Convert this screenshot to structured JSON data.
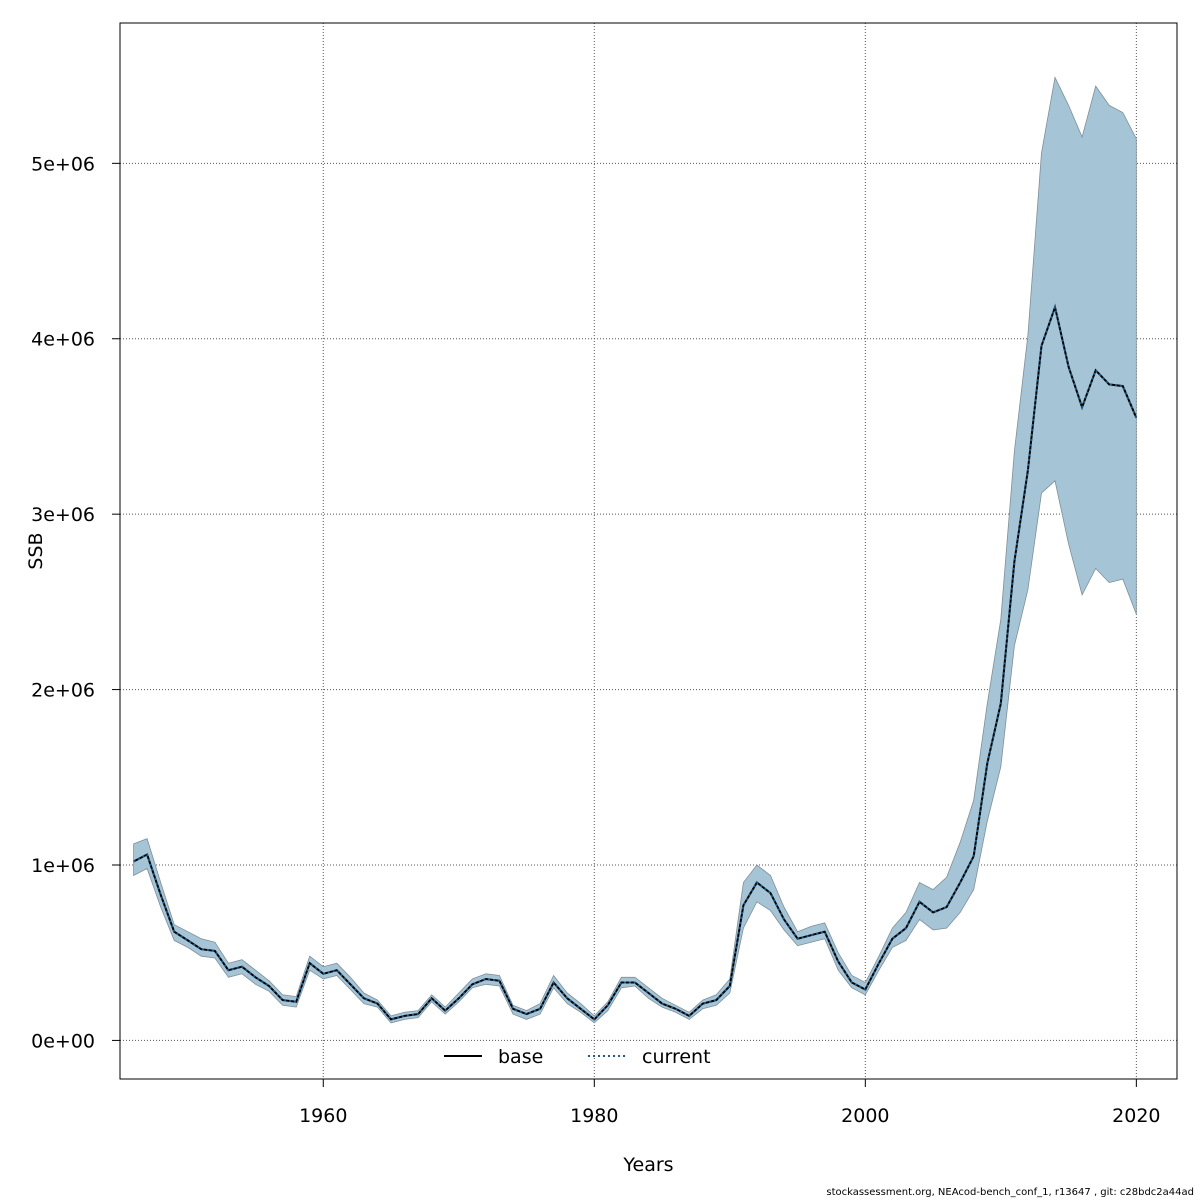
{
  "chart_data": {
    "type": "line",
    "xlabel": "Years",
    "ylabel": "SSB",
    "xlim": [
      1945,
      2023
    ],
    "ylim": [
      -220000,
      5800000
    ],
    "x_ticks": [
      1960,
      1980,
      2000,
      2020
    ],
    "x_tick_labels": [
      "1960",
      "1980",
      "2000",
      "2020"
    ],
    "y_ticks": [
      0,
      1000000,
      2000000,
      3000000,
      4000000,
      5000000
    ],
    "y_tick_labels": [
      "0e+00",
      "1e+06",
      "2e+06",
      "3e+06",
      "4e+06",
      "5e+06"
    ],
    "grid": true,
    "legend_position": "bottom-center",
    "colors": {
      "band": "#a5c5d6",
      "band_edge": "#7f8f99",
      "base": "#000000",
      "current": "#1f5a8a",
      "grid": "#555555"
    },
    "x": [
      1946,
      1947,
      1948,
      1949,
      1950,
      1951,
      1952,
      1953,
      1954,
      1955,
      1956,
      1957,
      1958,
      1959,
      1960,
      1961,
      1962,
      1963,
      1964,
      1965,
      1966,
      1967,
      1968,
      1969,
      1970,
      1971,
      1972,
      1973,
      1974,
      1975,
      1976,
      1977,
      1978,
      1979,
      1980,
      1981,
      1982,
      1983,
      1984,
      1985,
      1986,
      1987,
      1988,
      1989,
      1990,
      1991,
      1992,
      1993,
      1994,
      1995,
      1996,
      1997,
      1998,
      1999,
      2000,
      2001,
      2002,
      2003,
      2004,
      2005,
      2006,
      2007,
      2008,
      2009,
      2010,
      2011,
      2012,
      2013,
      2014,
      2015,
      2016,
      2017,
      2018,
      2019,
      2020
    ],
    "series": [
      {
        "name": "base",
        "line_style": "solid",
        "values": [
          1020000,
          1060000,
          830000,
          620000,
          570000,
          520000,
          510000,
          400000,
          420000,
          360000,
          310000,
          230000,
          220000,
          440000,
          380000,
          400000,
          320000,
          240000,
          210000,
          120000,
          140000,
          150000,
          240000,
          170000,
          240000,
          320000,
          350000,
          340000,
          180000,
          150000,
          180000,
          330000,
          240000,
          180000,
          120000,
          200000,
          330000,
          330000,
          270000,
          210000,
          180000,
          140000,
          210000,
          230000,
          310000,
          770000,
          900000,
          840000,
          690000,
          580000,
          600000,
          620000,
          450000,
          330000,
          290000,
          440000,
          580000,
          640000,
          790000,
          730000,
          760000,
          900000,
          1050000,
          1580000,
          1920000,
          2730000,
          3250000,
          3960000,
          4180000,
          3840000,
          3610000,
          3820000,
          3740000,
          3730000,
          3550000
        ]
      },
      {
        "name": "current",
        "line_style": "dotted",
        "values": [
          1020000,
          1060000,
          830000,
          620000,
          570000,
          520000,
          510000,
          400000,
          420000,
          360000,
          310000,
          230000,
          220000,
          440000,
          380000,
          400000,
          320000,
          240000,
          210000,
          120000,
          140000,
          150000,
          240000,
          170000,
          240000,
          320000,
          350000,
          340000,
          180000,
          150000,
          180000,
          330000,
          240000,
          180000,
          120000,
          200000,
          330000,
          330000,
          270000,
          210000,
          180000,
          140000,
          210000,
          230000,
          310000,
          770000,
          900000,
          840000,
          690000,
          580000,
          600000,
          620000,
          450000,
          330000,
          290000,
          440000,
          580000,
          640000,
          790000,
          730000,
          760000,
          900000,
          1050000,
          1580000,
          1920000,
          2730000,
          3250000,
          3960000,
          4180000,
          3840000,
          3610000,
          3820000,
          3740000,
          3730000,
          3550000
        ]
      }
    ],
    "band_lower": [
      940000,
      980000,
      760000,
      570000,
      530000,
      480000,
      470000,
      360000,
      380000,
      320000,
      280000,
      200000,
      190000,
      400000,
      350000,
      370000,
      290000,
      210000,
      190000,
      100000,
      120000,
      130000,
      220000,
      150000,
      220000,
      300000,
      320000,
      310000,
      150000,
      120000,
      150000,
      300000,
      210000,
      160000,
      100000,
      170000,
      300000,
      310000,
      240000,
      190000,
      160000,
      120000,
      180000,
      200000,
      270000,
      640000,
      790000,
      740000,
      630000,
      540000,
      560000,
      580000,
      400000,
      300000,
      260000,
      400000,
      530000,
      570000,
      690000,
      630000,
      640000,
      730000,
      860000,
      1250000,
      1560000,
      2250000,
      2570000,
      3120000,
      3190000,
      2830000,
      2540000,
      2690000,
      2610000,
      2630000,
      2430000
    ],
    "band_upper": [
      1120000,
      1150000,
      900000,
      660000,
      620000,
      580000,
      560000,
      440000,
      460000,
      400000,
      340000,
      260000,
      250000,
      480000,
      420000,
      440000,
      360000,
      270000,
      230000,
      140000,
      160000,
      170000,
      260000,
      190000,
      270000,
      350000,
      380000,
      370000,
      200000,
      170000,
      210000,
      370000,
      270000,
      210000,
      140000,
      220000,
      360000,
      360000,
      300000,
      240000,
      200000,
      160000,
      230000,
      260000,
      350000,
      900000,
      1000000,
      940000,
      760000,
      620000,
      650000,
      670000,
      500000,
      370000,
      330000,
      480000,
      640000,
      730000,
      900000,
      860000,
      930000,
      1130000,
      1370000,
      1920000,
      2400000,
      3360000,
      4020000,
      5060000,
      5490000,
      5330000,
      5150000,
      5440000,
      5330000,
      5290000,
      5140000
    ]
  },
  "legend": {
    "items": [
      "base",
      "current"
    ]
  },
  "footer": "stockassessment.org, NEAcod-bench_conf_1, r13647 , git: c28bdc2a44ad"
}
